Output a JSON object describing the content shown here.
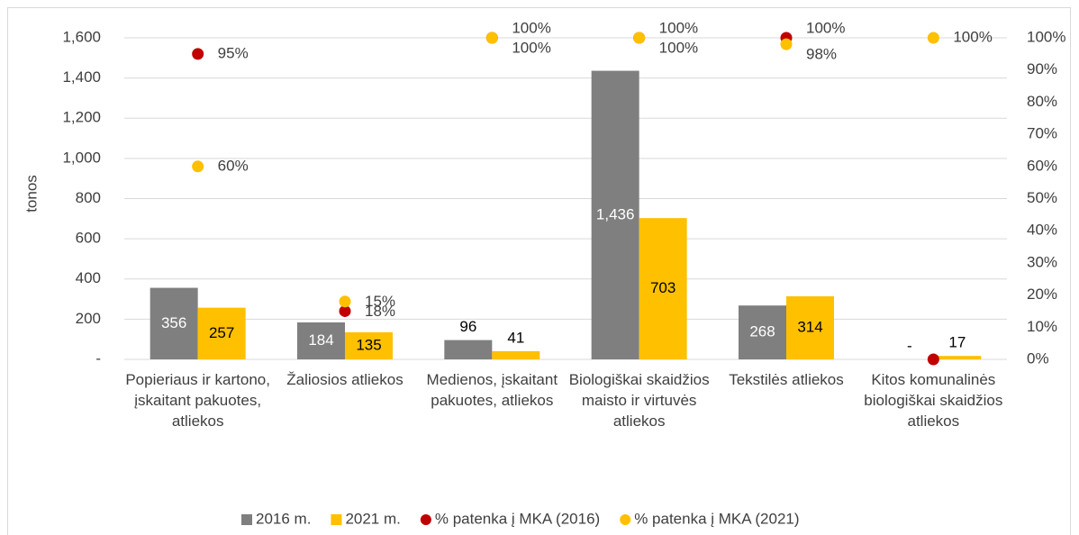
{
  "chart_data": {
    "type": "bar",
    "y_label": "tonos",
    "categories": [
      "Popieriaus ir kartono, įskaitant pakuotes, atliekos",
      "Žaliosios atliekos",
      "Medienos, įskaitant pakuotes, atliekos",
      "Biologiškai skaidžios maisto ir virtuvės atliekos",
      "Tekstilės atliekos",
      "Kitos komunalinės biologiškai skaidžios atliekos"
    ],
    "series": [
      {
        "name": "2016 m.",
        "color": "#7f7f7f",
        "values": [
          356,
          184,
          96,
          1436,
          268,
          0
        ],
        "value_labels": [
          "356",
          "184",
          "96",
          "1,436",
          "268",
          "-"
        ]
      },
      {
        "name": "2021 m.",
        "color": "#ffc000",
        "values": [
          257,
          135,
          41,
          703,
          314,
          17
        ]
      },
      {
        "name": "% patenka į MKA (2016)",
        "color": "#c00000",
        "type": "scatter",
        "axis": "y2",
        "values": [
          95,
          15,
          100,
          100,
          100,
          0
        ],
        "value_labels": [
          "95%",
          "15%",
          "100%",
          "100%",
          "100%",
          null
        ]
      },
      {
        "name": "% patenka į MKA (2021)",
        "color": "#ffc000",
        "type": "scatter",
        "axis": "y2",
        "values": [
          60,
          18,
          100,
          100,
          98,
          100
        ],
        "value_labels": [
          "60%",
          "18%",
          "100%",
          "100%",
          "98%",
          "100%"
        ]
      }
    ],
    "ylim": [
      0,
      1600
    ],
    "yticks": [
      {
        "value": 0,
        "label": "-"
      },
      200,
      400,
      600,
      800,
      {
        "value": 1000,
        "label": "1,000"
      },
      {
        "value": 1200,
        "label": "1,200"
      },
      {
        "value": 1400,
        "label": "1,400"
      },
      {
        "value": 1600,
        "label": "1,600"
      }
    ],
    "y2lim": [
      0,
      100
    ],
    "y2ticks": [
      {
        "value": 0,
        "label": "0%"
      },
      {
        "value": 10,
        "label": "10%"
      },
      {
        "value": 20,
        "label": "20%"
      },
      {
        "value": 30,
        "label": "30%"
      },
      {
        "value": 40,
        "label": "40%"
      },
      {
        "value": 50,
        "label": "50%"
      },
      {
        "value": 60,
        "label": "60%"
      },
      {
        "value": 70,
        "label": "70%"
      },
      {
        "value": 80,
        "label": "80%"
      },
      {
        "value": 90,
        "label": "90%"
      },
      {
        "value": 100,
        "label": "100%"
      }
    ],
    "grid": true,
    "legend": "bottom"
  }
}
